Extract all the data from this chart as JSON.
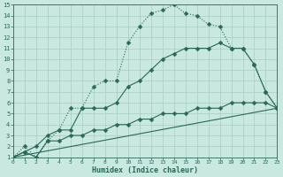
{
  "bg_color": "#c8e8e0",
  "grid_color": "#a8ccc4",
  "line_color": "#2a6858",
  "xlabel": "Humidex (Indice chaleur)",
  "xlim": [
    0,
    23
  ],
  "ylim": [
    1,
    15
  ],
  "xticks": [
    0,
    1,
    2,
    3,
    4,
    5,
    6,
    7,
    8,
    9,
    10,
    11,
    12,
    13,
    14,
    15,
    16,
    17,
    18,
    19,
    20,
    21,
    22,
    23
  ],
  "yticks": [
    1,
    2,
    3,
    4,
    5,
    6,
    7,
    8,
    9,
    10,
    11,
    12,
    13,
    14,
    15
  ],
  "line1_x": [
    0,
    1,
    2,
    3,
    4,
    5,
    6,
    7,
    8,
    9,
    10,
    11,
    12,
    13,
    14,
    15,
    16,
    17,
    18,
    19,
    20,
    21,
    22,
    23
  ],
  "line1_y": [
    1,
    2,
    1,
    2.5,
    3.5,
    5.5,
    5.5,
    7.5,
    8,
    8,
    11.5,
    13,
    14.2,
    14.5,
    15,
    14.2,
    14,
    13.2,
    13,
    11,
    11,
    9.5,
    7,
    5.5
  ],
  "line2_x": [
    0,
    1,
    2,
    3,
    4,
    5,
    6,
    7,
    8,
    9,
    10,
    11,
    12,
    13,
    14,
    15,
    16,
    17,
    18,
    19,
    20,
    21,
    22,
    23
  ],
  "line2_y": [
    1,
    1.5,
    2,
    3,
    3.5,
    3.5,
    5.5,
    5.5,
    5.5,
    6,
    7.5,
    8,
    9,
    10,
    10.5,
    11,
    11,
    11,
    11.5,
    11,
    11,
    9.5,
    7,
    5.5
  ],
  "line3_x": [
    0,
    1,
    2,
    3,
    4,
    5,
    6,
    7,
    8,
    9,
    10,
    11,
    12,
    13,
    14,
    15,
    16,
    17,
    18,
    19,
    20,
    21,
    22,
    23
  ],
  "line3_y": [
    1,
    1.5,
    1,
    2.5,
    2.5,
    3,
    3,
    3.5,
    3.5,
    4,
    4,
    4.5,
    4.5,
    5,
    5,
    5,
    5.5,
    5.5,
    5.5,
    6,
    6,
    6,
    6,
    5.5
  ],
  "line4_x": [
    0,
    23
  ],
  "line4_y": [
    1,
    5.5
  ]
}
